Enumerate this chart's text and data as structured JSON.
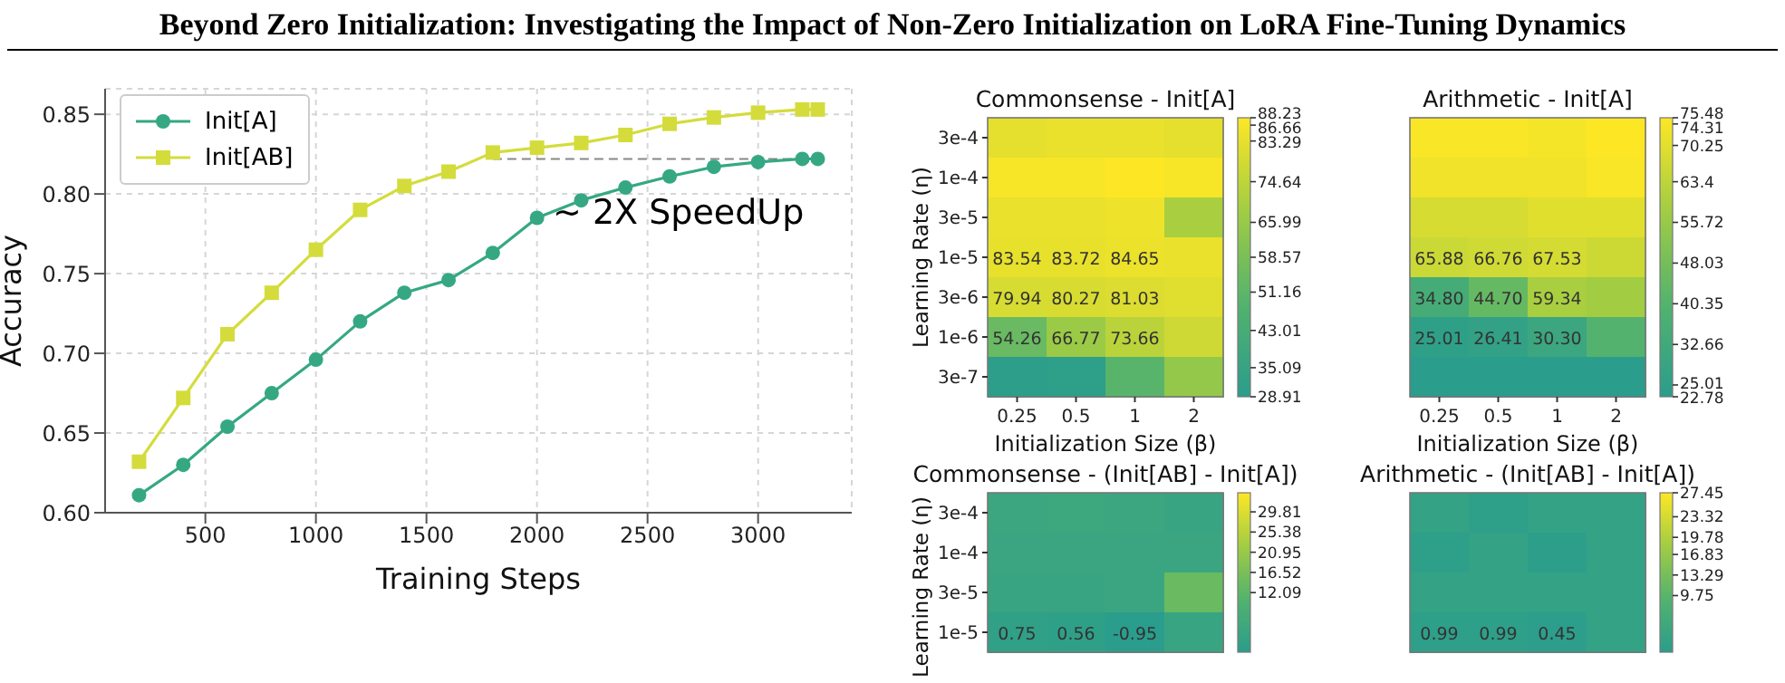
{
  "chart_data": [
    {
      "type": "line",
      "title": "Beyond Zero Initialization: Investigating the Impact of Non-Zero Initialization on LoRA Fine-Tuning Dynamics",
      "xlabel": "Training Steps",
      "ylabel": "Accuracy",
      "x": [
        200,
        400,
        600,
        800,
        1000,
        1200,
        1400,
        1600,
        1800,
        2000,
        2200,
        2400,
        2600,
        2800,
        3000,
        3200,
        3270
      ],
      "series": [
        {
          "name": "Init[A]",
          "color": "#35a883",
          "marker": "circle",
          "values": [
            0.611,
            0.63,
            0.654,
            0.675,
            0.696,
            0.72,
            0.738,
            0.746,
            0.763,
            0.785,
            0.796,
            0.804,
            0.811,
            0.817,
            0.82,
            0.822,
            0.822
          ]
        },
        {
          "name": "Init[AB]",
          "color": "#d4dc3c",
          "marker": "square",
          "values": [
            0.632,
            0.672,
            0.712,
            0.738,
            0.765,
            0.79,
            0.805,
            0.814,
            0.826,
            0.829,
            0.832,
            0.837,
            0.844,
            0.848,
            0.851,
            0.853,
            0.853
          ]
        }
      ],
      "xlim": [
        46.5,
        3423.5
      ],
      "xticks": [
        500,
        1000,
        1500,
        2000,
        2500,
        3000
      ],
      "ylim": [
        0.6,
        0.866
      ],
      "yticks": [
        {
          "value": 0.6,
          "label": "0.60"
        },
        0.65,
        {
          "value": 0.7,
          "label": "0.70"
        },
        0.75,
        {
          "value": 0.8,
          "label": "0.80"
        },
        0.85
      ],
      "grid": true,
      "legend": "top left",
      "ref_lines": [
        {
          "axis": "y",
          "value": 0.822,
          "color": "#888888",
          "line_style": "dashed"
        }
      ],
      "annotations": [
        "~ 2X SpeedUp"
      ]
    },
    {
      "type": "heatmap",
      "title": "Commonsense - Init[A]",
      "xlabel": "Initialization Size (β)",
      "ylabel": "Learning Rate (η)",
      "categories": [
        "0.25",
        "0.5",
        "1",
        "2"
      ],
      "y_categories": [
        "3e-4",
        "1e-4",
        "3e-5",
        "1e-5",
        "3e-6",
        "1e-6",
        "3e-7"
      ],
      "cells": [
        [
          83,
          84,
          84,
          83
        ],
        [
          87,
          87,
          88.23,
          87
        ],
        [
          84,
          84,
          85,
          70
        ],
        [
          83.54,
          83.72,
          84.65,
          84
        ],
        [
          79.94,
          80.27,
          81.03,
          82
        ],
        [
          54.26,
          66.77,
          73.66,
          78
        ],
        [
          30,
          31,
          50,
          65
        ]
      ],
      "cell_labels": [
        [
          null,
          null,
          null,
          null
        ],
        [
          null,
          null,
          null,
          null
        ],
        [
          null,
          null,
          null,
          null
        ],
        [
          "83.54",
          "83.72",
          "84.65",
          null
        ],
        [
          "79.94",
          "80.27",
          "81.03",
          null
        ],
        [
          "54.26",
          "66.77",
          "73.66",
          null
        ],
        [
          null,
          null,
          null,
          null
        ]
      ],
      "clim": [
        28.91,
        88.23
      ],
      "cticks": [
        28.91,
        35.09,
        43.01,
        51.16,
        58.57,
        65.99,
        74.64,
        83.29,
        86.66,
        88.23
      ]
    },
    {
      "type": "heatmap",
      "title": "Arithmetic - Init[A]",
      "xlabel": "Initialization Size (β)",
      "tick_labels": "x",
      "categories": [
        "0.25",
        "0.5",
        "1",
        "2"
      ],
      "y_categories": [
        null,
        null,
        null,
        null,
        null,
        null,
        null
      ],
      "cells": [
        [
          74.5,
          74.5,
          74,
          75.48
        ],
        [
          73,
          73,
          73,
          74.5
        ],
        [
          68,
          68,
          70,
          70
        ],
        [
          65.88,
          66.76,
          67.53,
          66
        ],
        [
          34.8,
          44.7,
          59.34,
          58
        ],
        [
          25.01,
          26.41,
          30.3,
          40
        ],
        [
          23,
          23,
          23,
          23
        ]
      ],
      "cell_labels": [
        [
          null,
          null,
          null,
          null
        ],
        [
          null,
          null,
          null,
          null
        ],
        [
          null,
          null,
          null,
          null
        ],
        [
          "65.88",
          "66.76",
          "67.53",
          null
        ],
        [
          "34.80",
          "44.70",
          "59.34",
          null
        ],
        [
          "25.01",
          "26.41",
          "30.30",
          null
        ],
        [
          null,
          null,
          null,
          null
        ]
      ],
      "clim": [
        22.78,
        75.48
      ],
      "cticks": [
        22.78,
        25.01,
        32.66,
        40.35,
        48.03,
        55.72,
        63.4,
        70.25,
        74.31,
        75.48
      ]
    },
    {
      "type": "heatmap",
      "title": "Commonsense - (Init[AB] - Init[A])",
      "ylabel": "Learning Rate (η)",
      "tick_labels": "y",
      "categories": [
        null,
        null,
        null,
        null
      ],
      "y_categories": [
        "3e-4",
        "1e-4",
        "3e-5",
        "1e-5"
      ],
      "cells": [
        [
          4,
          4.5,
          4,
          3
        ],
        [
          3.5,
          3.5,
          3.5,
          3.5
        ],
        [
          3,
          3,
          3.5,
          14
        ],
        [
          0.75,
          0.56,
          -0.95,
          3
        ]
      ],
      "cell_labels": [
        [
          null,
          null,
          null,
          null
        ],
        [
          null,
          null,
          null,
          null
        ],
        [
          null,
          null,
          null,
          null
        ],
        [
          "0.75",
          "0.56",
          "-0.95",
          null
        ]
      ],
      "clim": [
        -1,
        34
      ],
      "cticks": [
        12.09,
        16.52,
        20.95,
        25.38,
        29.81
      ]
    },
    {
      "type": "heatmap",
      "title": "Arithmetic - (Init[AB] - Init[A])",
      "tick_labels": false,
      "categories": [
        null,
        null,
        null,
        null
      ],
      "y_categories": [
        null,
        null,
        null,
        null
      ],
      "cells": [
        [
          2,
          1,
          2,
          2
        ],
        [
          1,
          2,
          0.5,
          2
        ],
        [
          2,
          2,
          2,
          2
        ],
        [
          0.99,
          0.99,
          0.45,
          2
        ]
      ],
      "cell_labels": [
        [
          null,
          null,
          null,
          null
        ],
        [
          null,
          null,
          null,
          null
        ],
        [
          null,
          null,
          null,
          null
        ],
        [
          "0.99",
          "0.99",
          "0.45",
          null
        ]
      ],
      "clim": [
        0,
        27.45
      ],
      "cticks": [
        9.75,
        13.29,
        16.83,
        19.78,
        23.32,
        27.45
      ]
    }
  ]
}
